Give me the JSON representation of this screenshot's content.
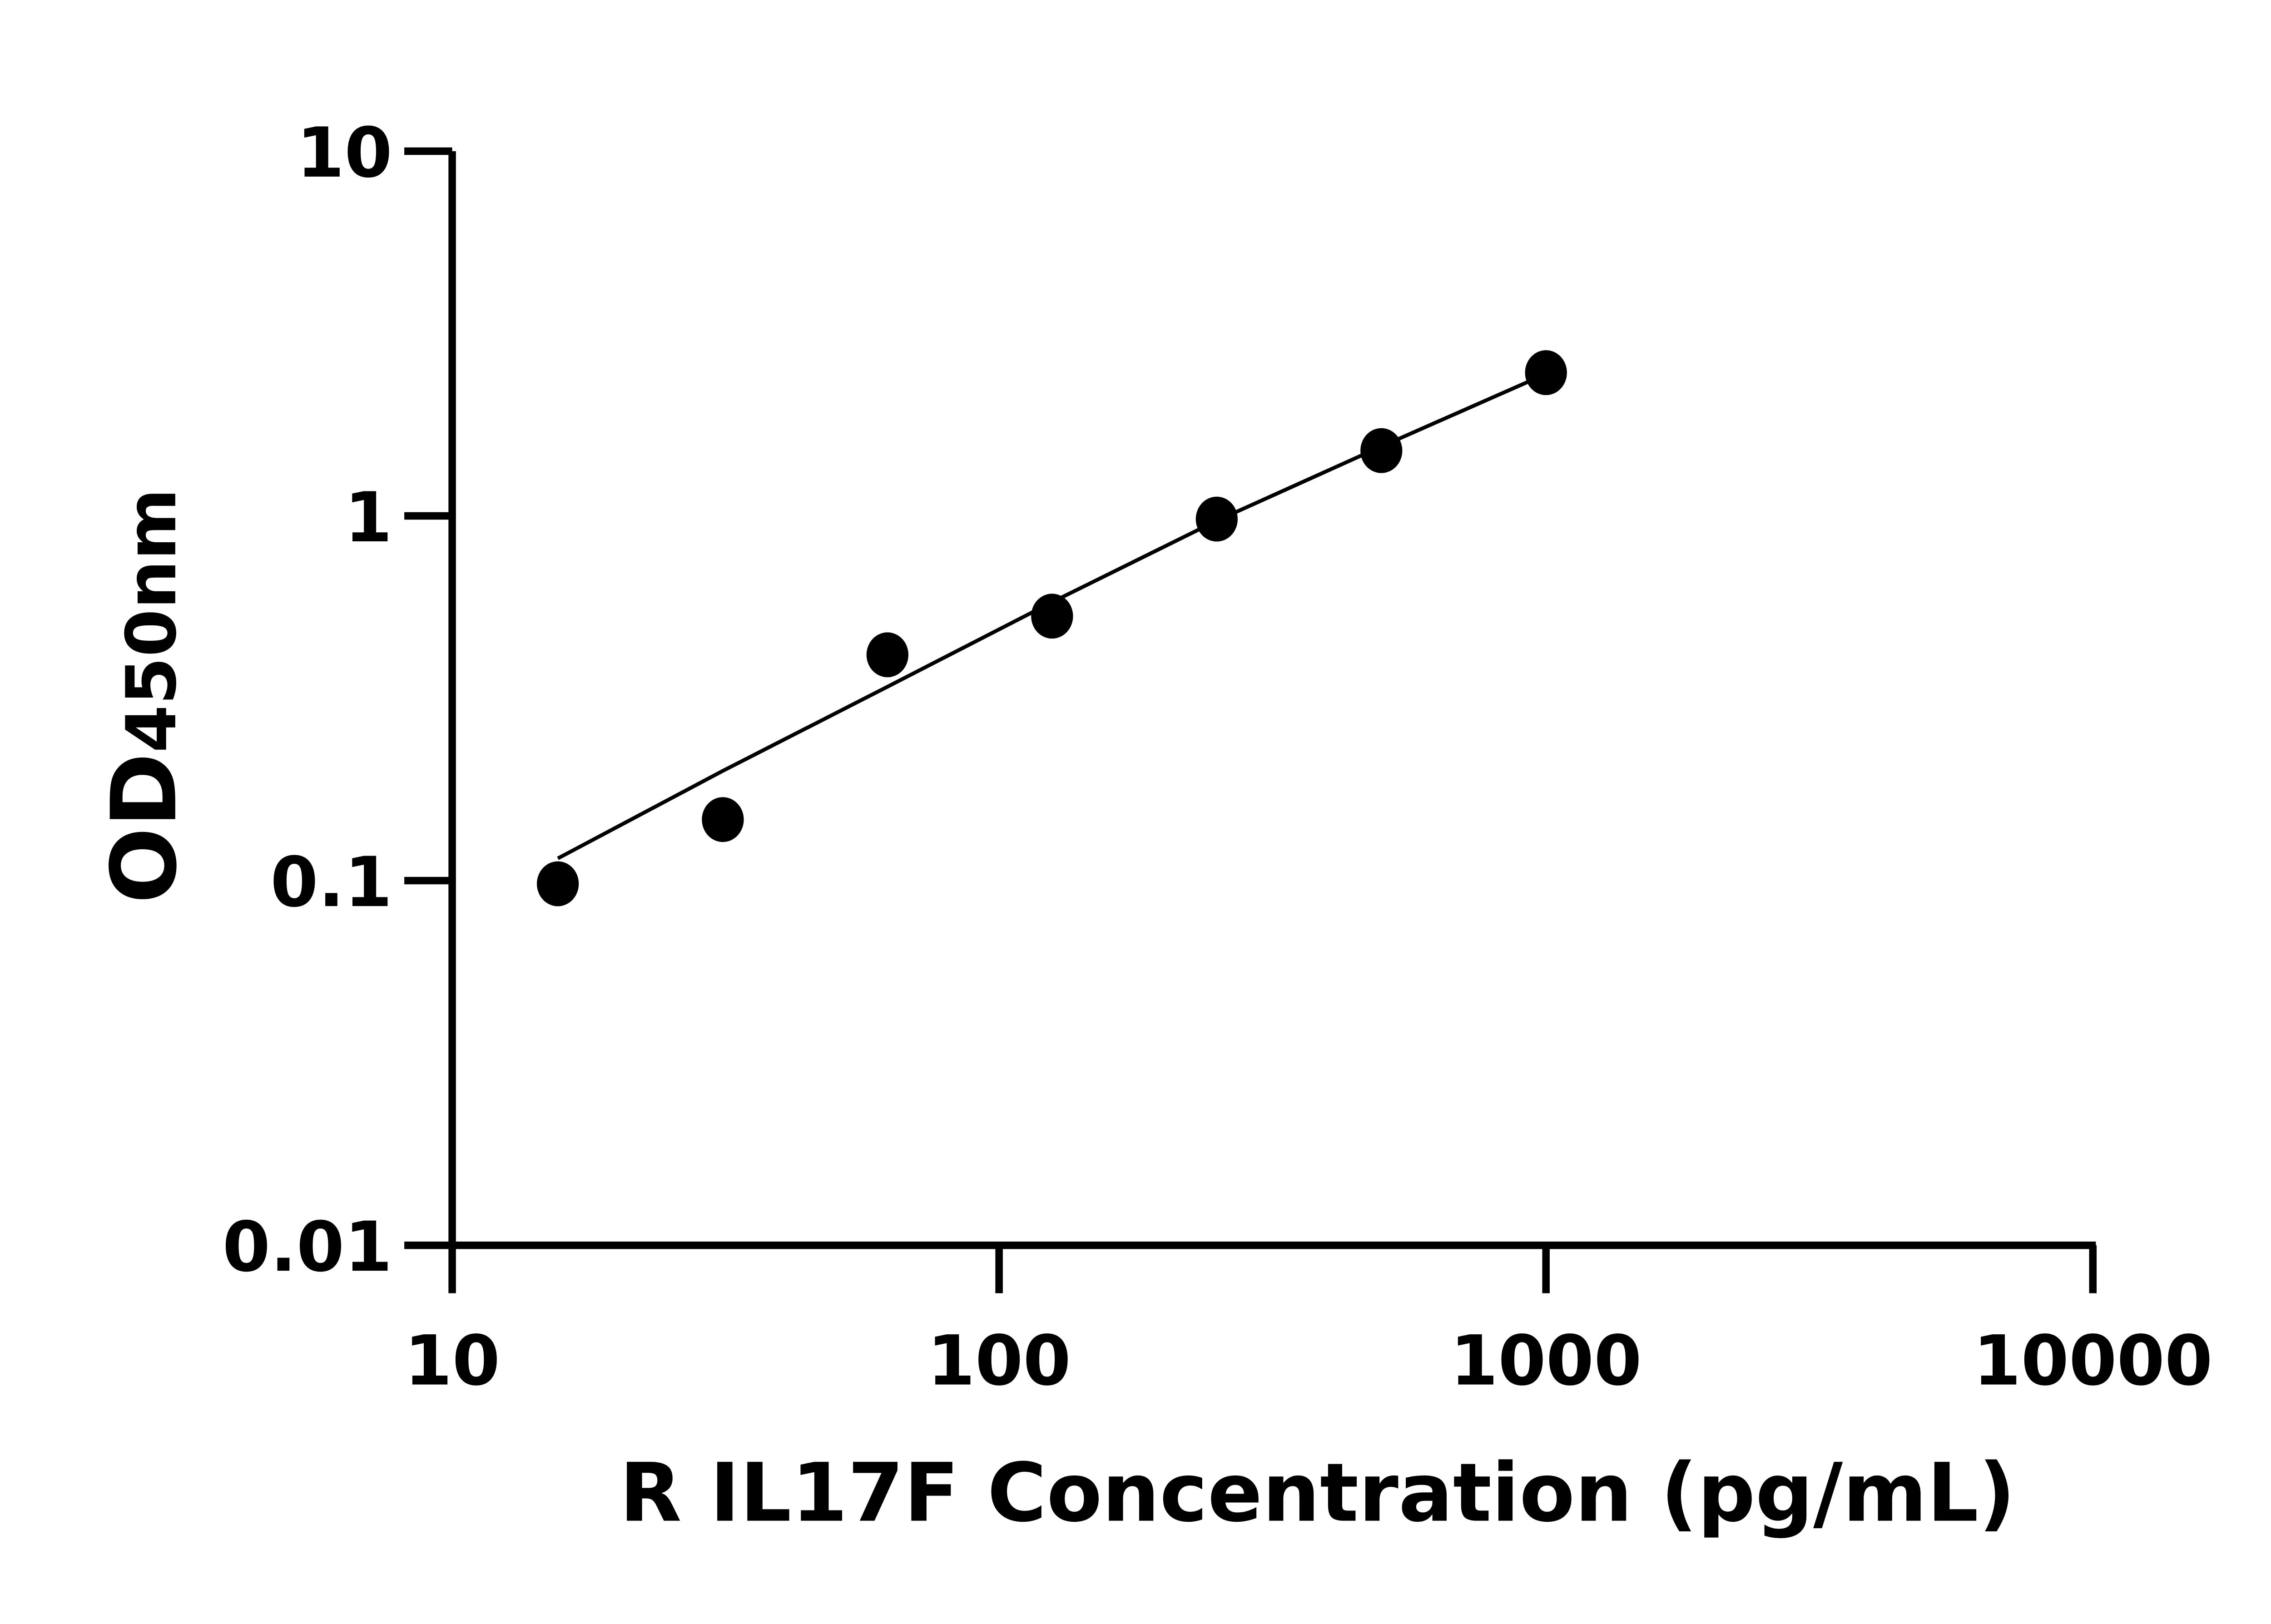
{
  "chart_data": {
    "type": "scatter",
    "title": "",
    "xlabel": "R IL17F Concentration (pg/mL)",
    "ylabel_main": "OD",
    "ylabel_sub": "450nm",
    "x_scale": "log",
    "y_scale": "log",
    "xlim": [
      10,
      10000
    ],
    "ylim": [
      0.01,
      10
    ],
    "x_ticks": [
      "10",
      "100",
      "1000",
      "10000"
    ],
    "y_ticks": [
      "0.01",
      "0.1",
      "1",
      "10"
    ],
    "grid": false,
    "legend": "none",
    "points": {
      "x": [
        15.6,
        31.25,
        62.5,
        125,
        250,
        500,
        1000
      ],
      "y": [
        0.098,
        0.147,
        0.416,
        0.531,
        0.98,
        1.51,
        2.47
      ]
    },
    "fit_curve": {
      "x": [
        15.6,
        31.25,
        62.5,
        125,
        250,
        500,
        1000
      ],
      "y": [
        0.115,
        0.2,
        0.34,
        0.58,
        0.97,
        1.55,
        2.45
      ]
    },
    "color": "#000000"
  }
}
